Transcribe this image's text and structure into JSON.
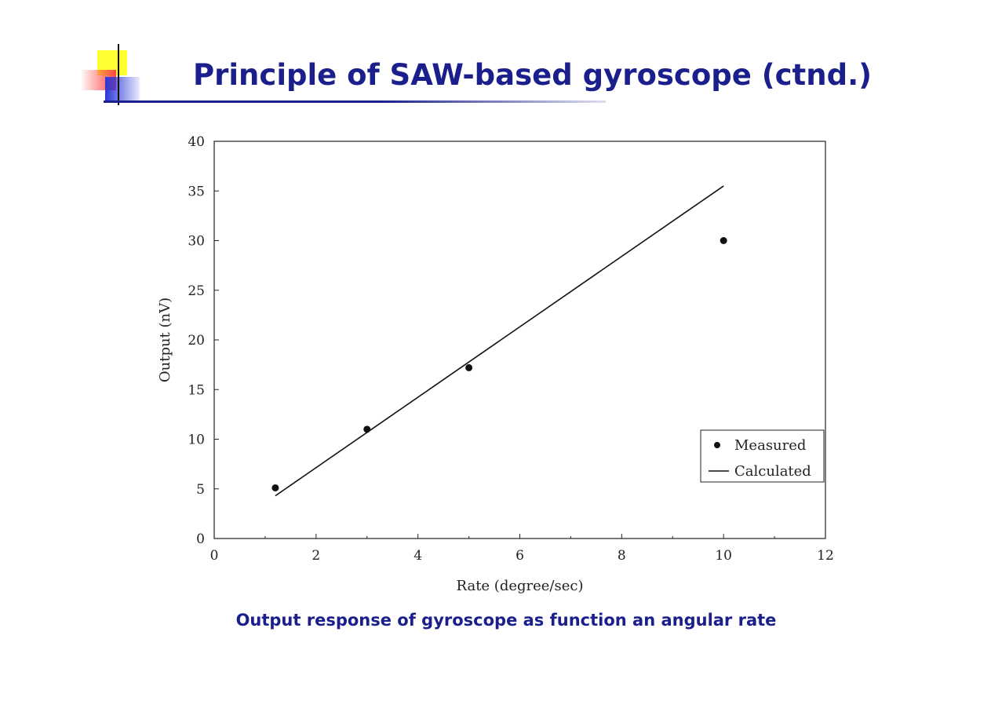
{
  "slide": {
    "title": "Principle of SAW-based gyroscope (ctnd.)",
    "caption": "Output response of gyroscope as function an angular rate",
    "title_color": "#1a1f8c"
  },
  "chart_data": {
    "type": "scatter",
    "xlabel": "Rate (degree/sec)",
    "ylabel": "Output (nV)",
    "xlim": [
      0,
      12
    ],
    "ylim": [
      0,
      40
    ],
    "xticks": [
      "0",
      "2",
      "4",
      "6",
      "8",
      "10",
      "12"
    ],
    "yticks": [
      "0",
      "5",
      "10",
      "15",
      "20",
      "25",
      "30",
      "35",
      "40"
    ],
    "grid": false,
    "legend_position": "bottom-right",
    "series": [
      {
        "name": "Measured",
        "kind": "scatter",
        "points": [
          {
            "x": 1.2,
            "y": 5.1
          },
          {
            "x": 3.0,
            "y": 11.0
          },
          {
            "x": 5.0,
            "y": 17.2
          },
          {
            "x": 10.0,
            "y": 30.0
          }
        ]
      },
      {
        "name": "Calculated",
        "kind": "line",
        "points": [
          {
            "x": 1.2,
            "y": 4.3
          },
          {
            "x": 10.0,
            "y": 35.5
          }
        ]
      }
    ]
  }
}
